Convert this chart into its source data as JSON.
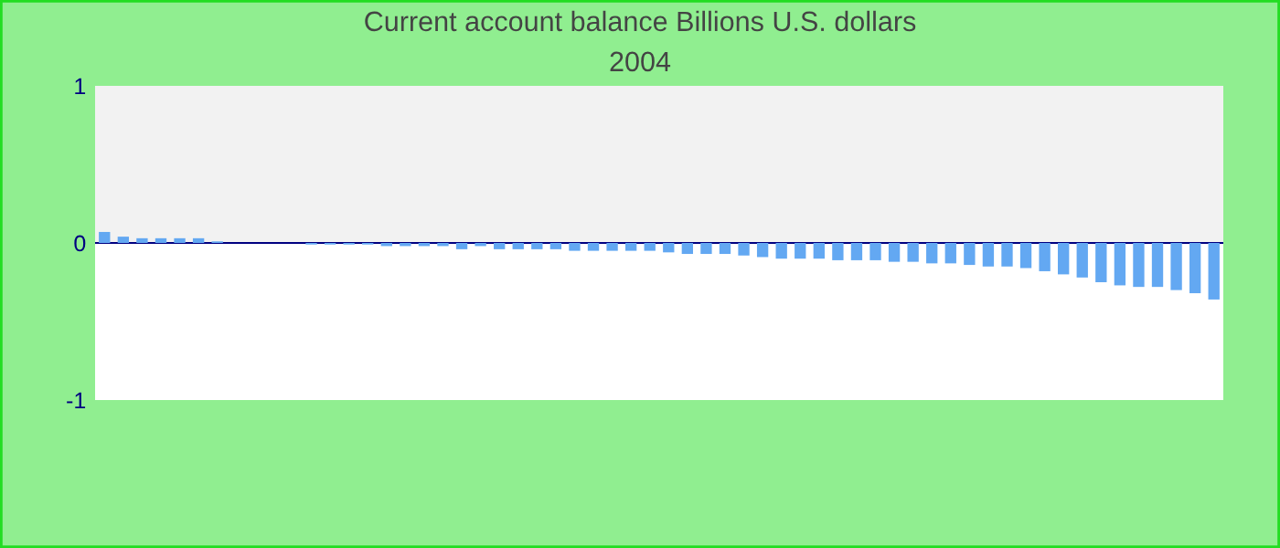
{
  "chart_data": {
    "type": "bar",
    "title": "Current account balance Billions U.S. dollars",
    "subtitle": "2004",
    "categories": [
      null,
      null,
      null,
      null,
      null,
      null,
      null,
      null,
      null,
      null,
      null,
      null,
      null,
      null,
      null,
      null,
      null,
      null,
      null,
      null,
      null,
      null,
      null,
      null,
      null,
      null,
      null,
      null,
      null,
      null,
      null,
      null,
      null,
      null,
      null,
      null,
      null,
      null,
      null,
      null,
      null,
      null,
      null,
      null,
      null,
      null,
      null,
      null,
      null,
      null,
      null,
      null,
      null,
      null,
      null,
      null,
      null,
      null,
      null,
      null
    ],
    "values": [
      0.07,
      0.04,
      0.03,
      0.03,
      0.03,
      0.03,
      0.01,
      0,
      0,
      0,
      0,
      -0.01,
      -0.01,
      -0.01,
      -0.01,
      -0.02,
      -0.02,
      -0.02,
      -0.02,
      -0.04,
      -0.02,
      -0.04,
      -0.04,
      -0.04,
      -0.04,
      -0.05,
      -0.05,
      -0.05,
      -0.05,
      -0.05,
      -0.06,
      -0.07,
      -0.07,
      -0.07,
      -0.08,
      -0.09,
      -0.1,
      -0.1,
      -0.1,
      -0.11,
      -0.11,
      -0.11,
      -0.12,
      -0.12,
      -0.13,
      -0.13,
      -0.14,
      -0.15,
      -0.15,
      -0.16,
      -0.18,
      -0.2,
      -0.22,
      -0.25,
      -0.27,
      -0.28,
      -0.28,
      -0.3,
      -0.32,
      -0.36
    ],
    "color": "#63a8f2",
    "ylim": [
      -1,
      1
    ],
    "yticks": [
      -1,
      0,
      1
    ],
    "bands": [
      {
        "axis": "y",
        "from": 0,
        "to": 1,
        "color": "#f2f2f2"
      }
    ],
    "ref_lines": [
      {
        "axis": "y",
        "value": 0,
        "color": "#000080"
      }
    ],
    "grid": false,
    "legend": false
  }
}
